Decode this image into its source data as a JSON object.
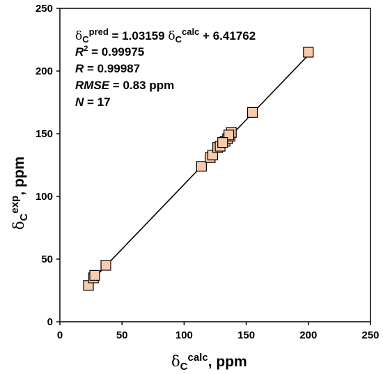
{
  "chart_data": {
    "type": "scatter",
    "xlabel": {
      "symbol": "δ",
      "subscript": "C",
      "superscript": "calc",
      "suffix": ", ppm"
    },
    "ylabel": {
      "symbol": "δ",
      "subscript": "C",
      "superscript": "exp",
      "suffix": ", ppm"
    },
    "xlim": [
      0,
      250
    ],
    "ylim": [
      0,
      250
    ],
    "xticks": [
      "0",
      "50",
      "100",
      "150",
      "200",
      "250"
    ],
    "yticks": [
      "0",
      "50",
      "100",
      "150",
      "200",
      "250"
    ],
    "grid": false,
    "marker": {
      "shape": "square",
      "fill": "#F8CBAD",
      "stroke": "#000000"
    },
    "points": [
      {
        "x": 23,
        "y": 29
      },
      {
        "x": 27,
        "y": 35
      },
      {
        "x": 28,
        "y": 37
      },
      {
        "x": 37,
        "y": 45
      },
      {
        "x": 114,
        "y": 124
      },
      {
        "x": 121,
        "y": 131
      },
      {
        "x": 123,
        "y": 133
      },
      {
        "x": 127,
        "y": 139
      },
      {
        "x": 129,
        "y": 140
      },
      {
        "x": 133,
        "y": 144
      },
      {
        "x": 135,
        "y": 146
      },
      {
        "x": 137,
        "y": 148
      },
      {
        "x": 138,
        "y": 151
      },
      {
        "x": 136,
        "y": 149
      },
      {
        "x": 155,
        "y": 167
      },
      {
        "x": 200,
        "y": 215
      },
      {
        "x": 131,
        "y": 143
      }
    ],
    "fit": {
      "slope": 1.03159,
      "intercept": 6.41762,
      "x_range": [
        23,
        200
      ]
    },
    "annotations": {
      "equation": {
        "sym1": "δ",
        "sub1": "C",
        "sup1": "pred",
        "eq": " = 1.03159 ",
        "sym2": "δ",
        "sub2": "C",
        "sup2": "calc",
        "tail": " + 6.41762"
      },
      "r2": {
        "label": "R",
        "sup": "2",
        "text": " = 0.99975"
      },
      "r": {
        "label": "R",
        "text": " = 0.99987"
      },
      "rmse": {
        "label": "RMSE",
        "text": " = 0.83 ppm"
      },
      "n": {
        "label": "N",
        "text": " = 17"
      }
    }
  }
}
